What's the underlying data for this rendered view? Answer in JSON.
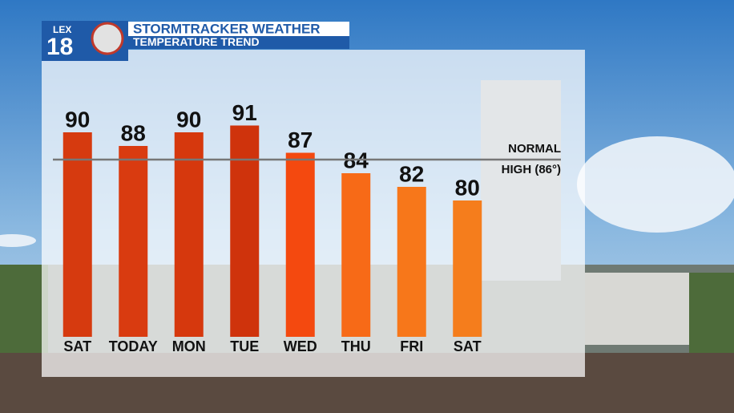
{
  "chart_data": {
    "type": "bar",
    "title": "STORMTRACKER WEATHER",
    "subtitle": "TEMPERATURE TREND",
    "logo": {
      "top": "LEX",
      "number": "18"
    },
    "categories": [
      "SAT",
      "TODAY",
      "MON",
      "TUE",
      "WED",
      "THU",
      "FRI",
      "SAT"
    ],
    "values": [
      90,
      88,
      90,
      91,
      87,
      84,
      82,
      80
    ],
    "colors": [
      "#d63a0f",
      "#d93b10",
      "#d6380d",
      "#cf330c",
      "#f4490f",
      "#f76a17",
      "#f7771a",
      "#f57d1c"
    ],
    "ylim": [
      60,
      100
    ],
    "reference_line": {
      "value": 86,
      "label_lines": [
        "NORMAL",
        "HIGH (86°)"
      ]
    }
  }
}
